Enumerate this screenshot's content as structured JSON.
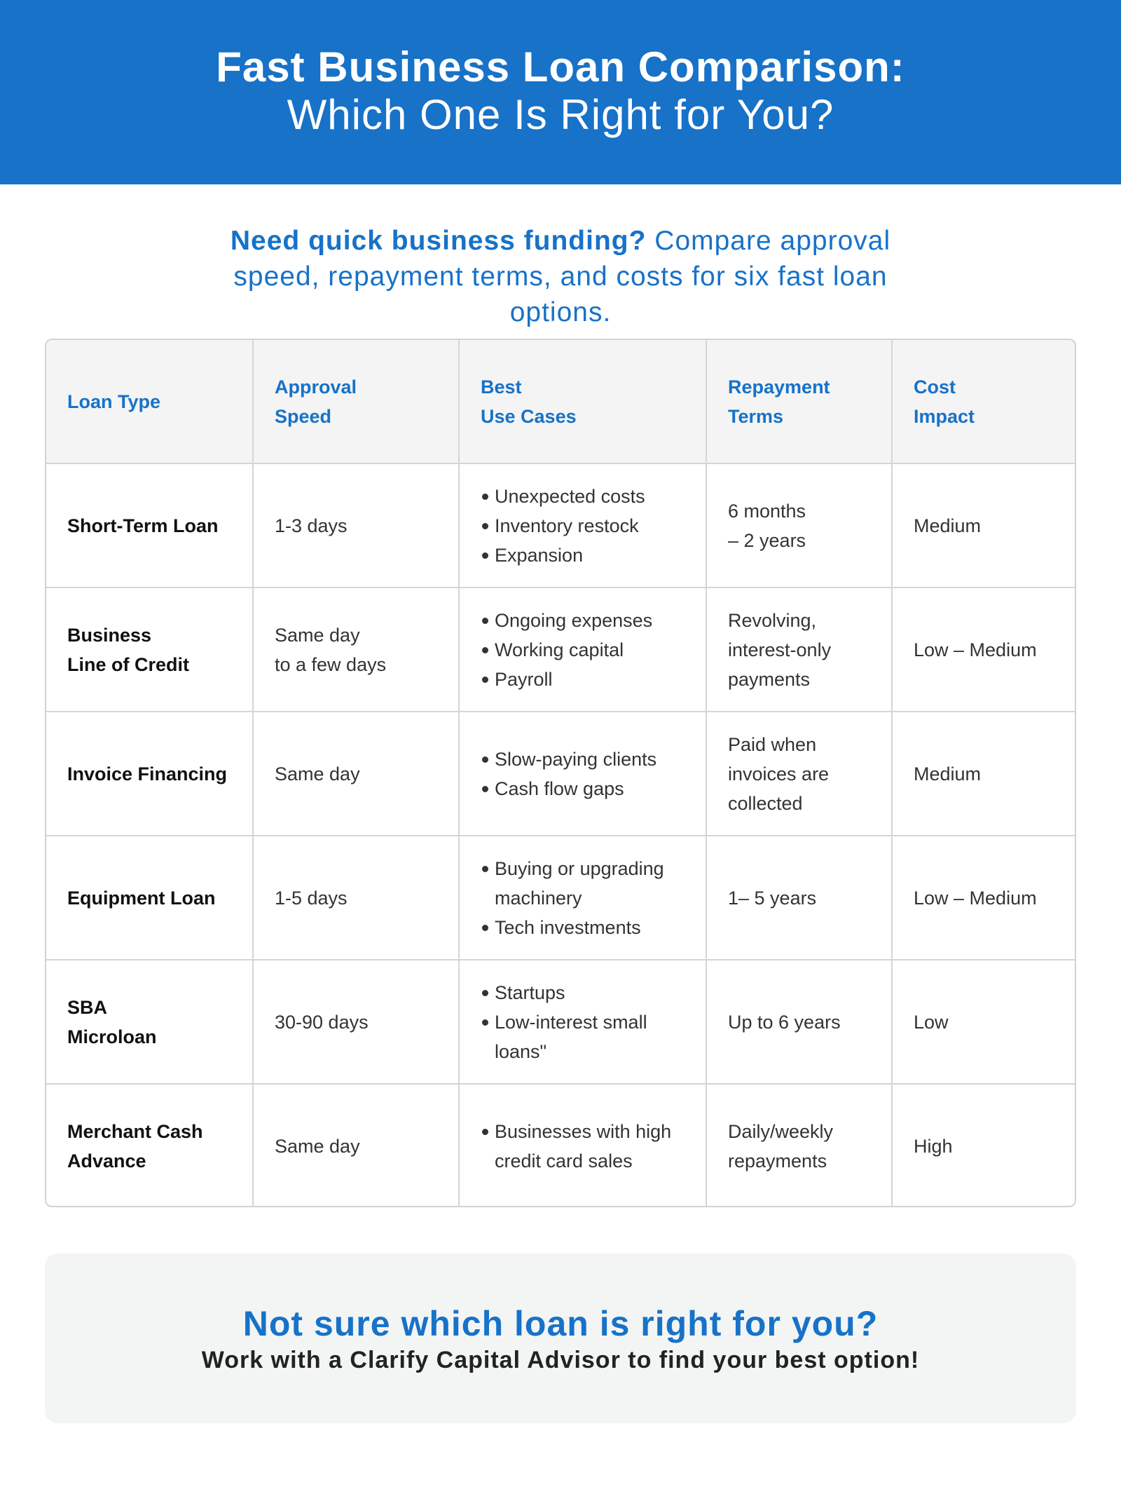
{
  "header": {
    "title_line1": "Fast Business Loan Comparison:",
    "title_line2": "Which One Is Right for You?"
  },
  "intro": {
    "bold": "Need quick business funding?",
    "rest": " Compare approval speed, repayment terms, and costs for six fast loan options."
  },
  "table": {
    "headers": [
      [
        "Loan Type"
      ],
      [
        "Approval",
        "Speed"
      ],
      [
        "Best",
        "Use Cases"
      ],
      [
        "Repayment",
        "Terms"
      ],
      [
        "Cost",
        "Impact"
      ]
    ],
    "rows": [
      {
        "type": [
          "Short-Term Loan"
        ],
        "speed": [
          "1-3 days"
        ],
        "uses": [
          "Unexpected costs",
          "Inventory restock",
          "Expansion"
        ],
        "terms": [
          "6 months",
          "– 2 years"
        ],
        "cost": "Medium"
      },
      {
        "type": [
          "Business",
          "Line of Credit"
        ],
        "speed": [
          "Same day",
          "to a few days"
        ],
        "uses": [
          "Ongoing expenses",
          "Working capital",
          "Payroll"
        ],
        "terms": [
          "Revolving,",
          "interest-only",
          "payments"
        ],
        "cost": "Low – Medium"
      },
      {
        "type": [
          "Invoice Financing"
        ],
        "speed": [
          "Same day"
        ],
        "uses": [
          "Slow-paying clients",
          "Cash flow gaps"
        ],
        "terms": [
          "Paid when",
          "invoices are",
          "collected"
        ],
        "cost": "Medium"
      },
      {
        "type": [
          "Equipment Loan"
        ],
        "speed": [
          "1-5 days"
        ],
        "uses": [
          "Buying or upgrading machinery",
          "Tech investments"
        ],
        "terms": [
          "1– 5 years"
        ],
        "cost": "Low – Medium"
      },
      {
        "type": [
          "SBA",
          "Microloan"
        ],
        "speed": [
          "30-90 days"
        ],
        "uses": [
          "Startups",
          "Low-interest small loans\""
        ],
        "terms": [
          "Up to 6 years"
        ],
        "cost": "Low"
      },
      {
        "type": [
          "Merchant Cash",
          "Advance"
        ],
        "speed": [
          "Same day"
        ],
        "uses": [
          "Businesses with high credit card sales"
        ],
        "terms": [
          "Daily/weekly",
          "repayments"
        ],
        "cost": "High"
      }
    ]
  },
  "cta": {
    "title": "Not sure which loan is right for you?",
    "subtitle": "Work with a Clarify Capital Advisor to find your best option!"
  },
  "colors": {
    "brand_blue": "#1772c8",
    "header_bg": "#f4f4f4",
    "cta_bg": "#f2f5f4"
  }
}
